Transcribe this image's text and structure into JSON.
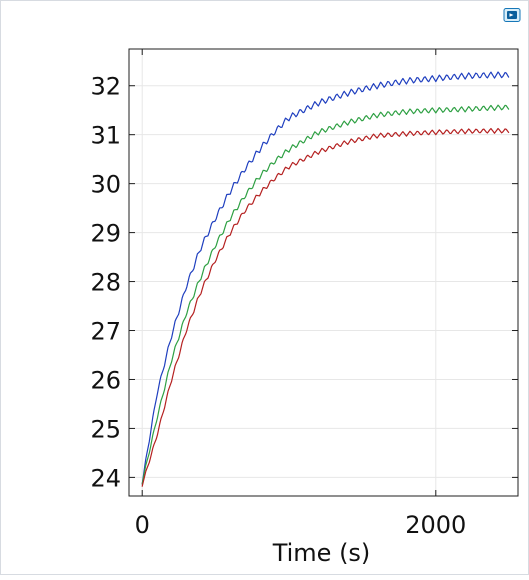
{
  "toolbar": {
    "action_icon": "plot-window-icon"
  },
  "chart_data": {
    "type": "line",
    "title": "",
    "xlabel": "Time (s)",
    "ylabel": "",
    "xlim": [
      -90,
      2560
    ],
    "ylim": [
      23.62,
      32.75
    ],
    "x_ticks": [
      0,
      2000
    ],
    "y_ticks": [
      24,
      25,
      26,
      27,
      28,
      29,
      30,
      31,
      32
    ],
    "grid": true,
    "legend": "none",
    "series": [
      {
        "color": "#1f3fbf",
        "x": [
          0,
          100,
          200,
          300,
          400,
          500,
          600,
          700,
          800,
          900,
          1000,
          1200,
          1400,
          1600,
          1800,
          2000,
          2200,
          2400,
          2500
        ],
        "y": [
          23.9,
          25.7,
          26.9,
          27.9,
          28.7,
          29.3,
          29.85,
          30.3,
          30.7,
          31.05,
          31.35,
          31.65,
          31.85,
          32.0,
          32.1,
          32.15,
          32.2,
          32.22,
          32.22
        ],
        "ripple": 0.13,
        "period": 50
      },
      {
        "color": "#2ea043",
        "x": [
          0,
          100,
          200,
          300,
          400,
          500,
          600,
          700,
          800,
          900,
          1000,
          1200,
          1400,
          1600,
          1800,
          2000,
          2200,
          2400,
          2500
        ],
        "y": [
          23.9,
          25.2,
          26.4,
          27.35,
          28.1,
          28.75,
          29.3,
          29.75,
          30.15,
          30.45,
          30.7,
          31.05,
          31.25,
          31.4,
          31.47,
          31.5,
          31.52,
          31.55,
          31.56
        ],
        "ripple": 0.11,
        "period": 50
      },
      {
        "color": "#b52121",
        "x": [
          0,
          100,
          200,
          300,
          400,
          500,
          600,
          700,
          800,
          900,
          1000,
          1200,
          1400,
          1600,
          1800,
          2000,
          2200,
          2400,
          2500
        ],
        "y": [
          23.85,
          24.85,
          26.0,
          27.0,
          27.8,
          28.45,
          29.0,
          29.45,
          29.8,
          30.1,
          30.35,
          30.65,
          30.85,
          30.98,
          31.02,
          31.05,
          31.07,
          31.08,
          31.08
        ],
        "ripple": 0.1,
        "period": 50
      }
    ]
  }
}
